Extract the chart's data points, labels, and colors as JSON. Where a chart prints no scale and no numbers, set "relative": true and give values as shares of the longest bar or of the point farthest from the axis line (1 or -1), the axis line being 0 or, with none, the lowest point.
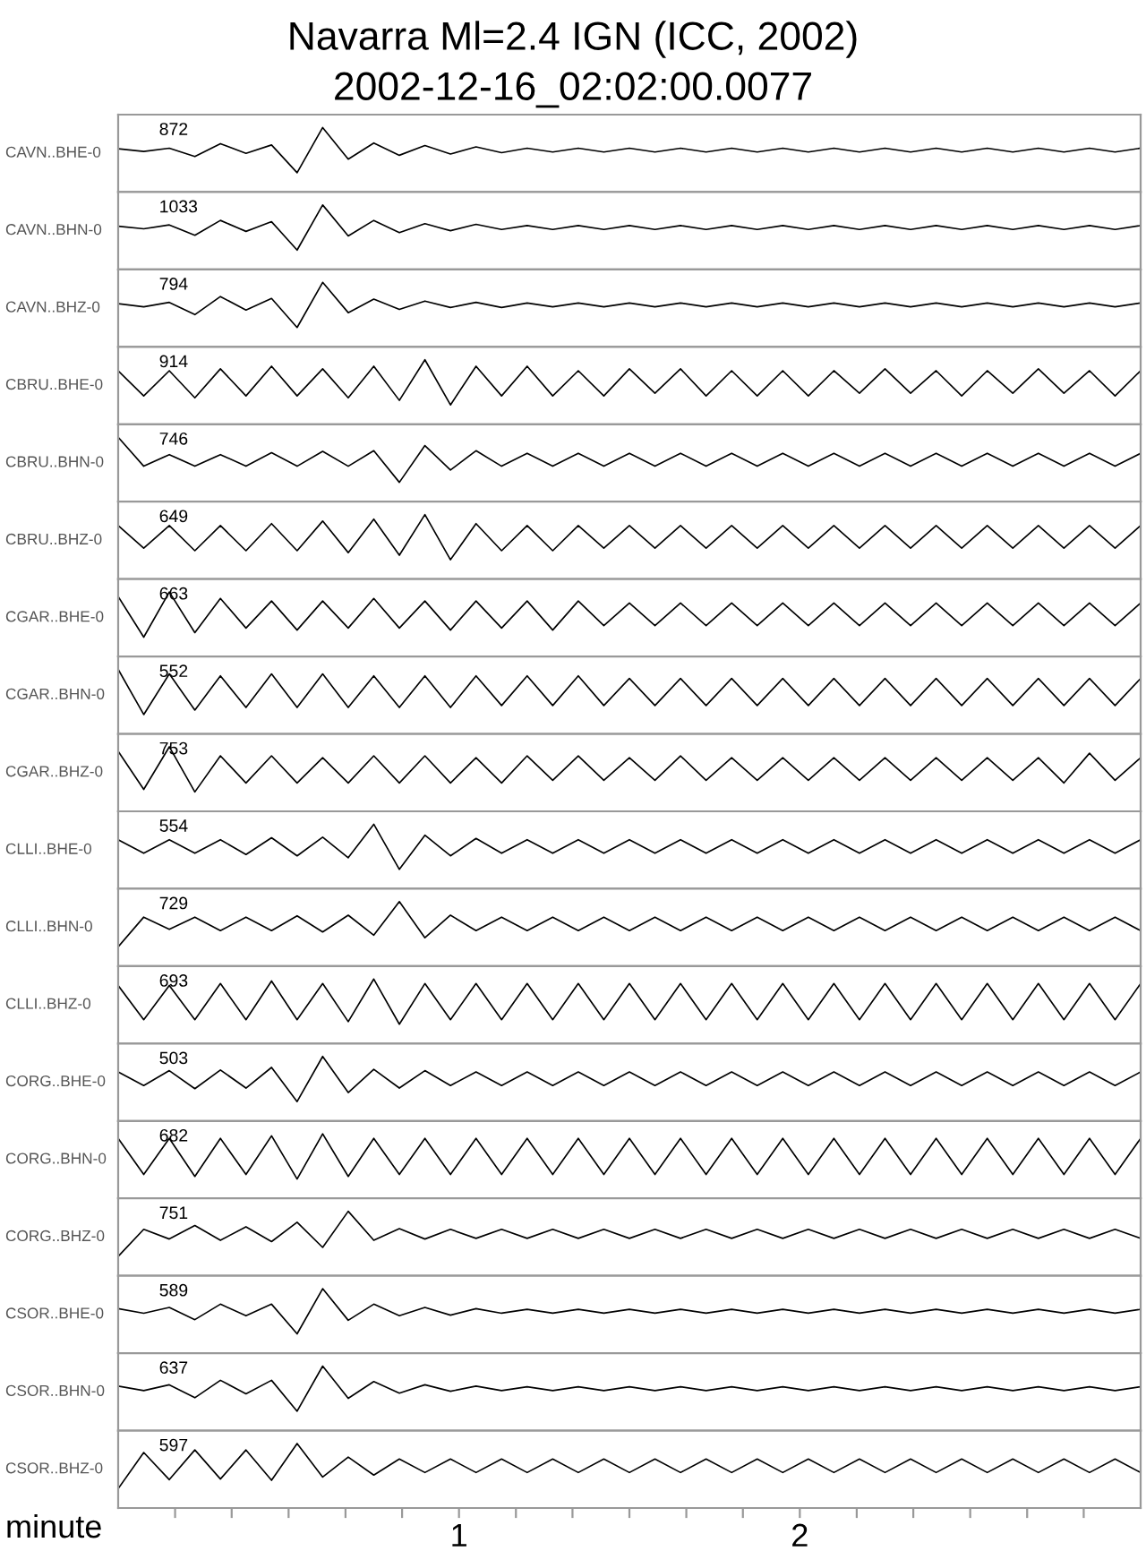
{
  "chart_data": [
    {
      "type": "line",
      "title": "Navarra Ml=2.4 IGN (ICC, 2002)",
      "subtitle": "2002-12-16_02:02:00.0077",
      "ylabel": "CAVN..BHE-0",
      "annotations": [
        "872"
      ],
      "relative": true,
      "xlim": [
        0,
        3
      ],
      "tick_labels": false,
      "x": [
        0,
        0.075,
        0.15,
        0.225,
        0.3,
        0.375,
        0.45,
        0.525,
        0.6,
        0.675,
        0.75,
        0.825,
        0.9,
        0.975,
        1.05,
        1.125,
        1.2,
        1.275,
        1.35,
        1.425,
        1.5,
        1.575,
        1.65,
        1.725,
        1.8,
        1.875,
        1.95,
        2.025,
        2.1,
        2.175,
        2.25,
        2.325,
        2.4,
        2.475,
        2.55,
        2.625,
        2.7,
        2.775,
        2.85,
        2.925,
        3.0
      ],
      "series": [
        {
          "color": "#000000",
          "values": [
            0.67,
            0.63,
            0.68,
            0.55,
            0.75,
            0.6,
            0.73,
            0.3,
            1,
            0.51,
            0.76,
            0.57,
            0.72,
            0.59,
            0.7,
            0.61,
            0.68,
            0.62,
            0.68,
            0.62,
            0.68,
            0.62,
            0.68,
            0.62,
            0.68,
            0.62,
            0.68,
            0.62,
            0.68,
            0.62,
            0.68,
            0.62,
            0.68,
            0.62,
            0.68,
            0.62,
            0.68,
            0.62,
            0.68,
            0.62,
            0.68
          ]
        }
      ]
    },
    {
      "type": "line",
      "ylabel": "CAVN..BHN-0",
      "annotations": [
        "1033"
      ],
      "relative": true,
      "xlim": [
        0,
        3
      ],
      "tick_labels": false,
      "x": [
        0,
        0.075,
        0.15,
        0.225,
        0.3,
        0.375,
        0.45,
        0.525,
        0.6,
        0.675,
        0.75,
        0.825,
        0.9,
        0.975,
        1.05,
        1.125,
        1.2,
        1.275,
        1.35,
        1.425,
        1.5,
        1.575,
        1.65,
        1.725,
        1.8,
        1.875,
        1.95,
        2.025,
        2.1,
        2.175,
        2.25,
        2.325,
        2.4,
        2.475,
        2.55,
        2.625,
        2.7,
        2.775,
        2.85,
        2.925,
        3.0
      ],
      "series": [
        {
          "color": "#000000",
          "values": [
            0.67,
            0.63,
            0.69,
            0.53,
            0.76,
            0.59,
            0.74,
            0.3,
            1,
            0.52,
            0.76,
            0.57,
            0.71,
            0.6,
            0.7,
            0.62,
            0.68,
            0.62,
            0.68,
            0.62,
            0.68,
            0.62,
            0.68,
            0.62,
            0.68,
            0.62,
            0.68,
            0.62,
            0.68,
            0.62,
            0.68,
            0.62,
            0.68,
            0.62,
            0.68,
            0.62,
            0.68,
            0.62,
            0.68,
            0.62,
            0.68
          ]
        }
      ]
    },
    {
      "type": "line",
      "ylabel": "CAVN..BHZ-0",
      "annotations": [
        "794"
      ],
      "relative": true,
      "xlim": [
        0,
        3
      ],
      "tick_labels": false,
      "x": [
        0,
        0.075,
        0.15,
        0.225,
        0.3,
        0.375,
        0.45,
        0.525,
        0.6,
        0.675,
        0.75,
        0.825,
        0.9,
        0.975,
        1.05,
        1.125,
        1.2,
        1.275,
        1.35,
        1.425,
        1.5,
        1.575,
        1.65,
        1.725,
        1.8,
        1.875,
        1.95,
        2.025,
        2.1,
        2.175,
        2.25,
        2.325,
        2.4,
        2.475,
        2.55,
        2.625,
        2.7,
        2.775,
        2.85,
        2.925,
        3.0
      ],
      "series": [
        {
          "color": "#000000",
          "values": [
            0.67,
            0.62,
            0.69,
            0.5,
            0.78,
            0.57,
            0.75,
            0.3,
            1,
            0.53,
            0.74,
            0.58,
            0.71,
            0.61,
            0.69,
            0.61,
            0.68,
            0.62,
            0.68,
            0.62,
            0.68,
            0.62,
            0.68,
            0.62,
            0.68,
            0.62,
            0.68,
            0.62,
            0.68,
            0.62,
            0.68,
            0.62,
            0.68,
            0.62,
            0.68,
            0.62,
            0.68,
            0.62,
            0.68,
            0.62,
            0.68
          ]
        }
      ]
    },
    {
      "type": "line",
      "ylabel": "CBRU..BHE-0",
      "annotations": [
        "914"
      ],
      "relative": true,
      "xlim": [
        0,
        3
      ],
      "tick_labels": false,
      "x": [
        0,
        0.075,
        0.15,
        0.225,
        0.3,
        0.375,
        0.45,
        0.525,
        0.6,
        0.675,
        0.75,
        0.825,
        0.9,
        0.975,
        1.05,
        1.125,
        1.2,
        1.275,
        1.35,
        1.425,
        1.5,
        1.575,
        1.65,
        1.725,
        1.8,
        1.875,
        1.95,
        2.025,
        2.1,
        2.175,
        2.25,
        2.325,
        2.4,
        2.475,
        2.55,
        2.625,
        2.7,
        2.775,
        2.85,
        2.925,
        3.0
      ],
      "series": [
        {
          "color": "#000000",
          "values": [
            0.83,
            0.44,
            0.83,
            0.41,
            0.86,
            0.44,
            0.9,
            0.44,
            0.86,
            0.41,
            0.9,
            0.37,
            1,
            0.3,
            0.9,
            0.44,
            0.9,
            0.44,
            0.83,
            0.44,
            0.86,
            0.48,
            0.86,
            0.44,
            0.83,
            0.44,
            0.83,
            0.44,
            0.83,
            0.48,
            0.86,
            0.48,
            0.83,
            0.44,
            0.83,
            0.48,
            0.86,
            0.48,
            0.83,
            0.44,
            0.83
          ]
        }
      ]
    },
    {
      "type": "line",
      "ylabel": "CBRU..BHN-0",
      "annotations": [
        "746"
      ],
      "relative": true,
      "xlim": [
        0,
        3
      ],
      "tick_labels": false,
      "x": [
        0,
        0.075,
        0.15,
        0.225,
        0.3,
        0.375,
        0.45,
        0.525,
        0.6,
        0.675,
        0.75,
        0.825,
        0.9,
        0.975,
        1.05,
        1.125,
        1.2,
        1.275,
        1.35,
        1.425,
        1.5,
        1.575,
        1.65,
        1.725,
        1.8,
        1.875,
        1.95,
        2.025,
        2.1,
        2.175,
        2.25,
        2.325,
        2.4,
        2.475,
        2.55,
        2.625,
        2.7,
        2.775,
        2.85,
        2.925,
        3.0
      ],
      "series": [
        {
          "color": "#000000",
          "values": [
            1,
            0.55,
            0.73,
            0.55,
            0.73,
            0.55,
            0.76,
            0.55,
            0.78,
            0.55,
            0.79,
            0.3,
            0.87,
            0.49,
            0.79,
            0.55,
            0.75,
            0.55,
            0.75,
            0.55,
            0.75,
            0.55,
            0.75,
            0.55,
            0.75,
            0.55,
            0.75,
            0.55,
            0.75,
            0.55,
            0.75,
            0.55,
            0.75,
            0.55,
            0.75,
            0.55,
            0.75,
            0.55,
            0.75,
            0.55,
            0.75
          ]
        }
      ]
    },
    {
      "type": "line",
      "ylabel": "CBRU..BHZ-0",
      "annotations": [
        "649"
      ],
      "relative": true,
      "xlim": [
        0,
        3
      ],
      "tick_labels": false,
      "x": [
        0,
        0.075,
        0.15,
        0.225,
        0.3,
        0.375,
        0.45,
        0.525,
        0.6,
        0.675,
        0.75,
        0.825,
        0.9,
        0.975,
        1.05,
        1.125,
        1.2,
        1.275,
        1.35,
        1.425,
        1.5,
        1.575,
        1.65,
        1.725,
        1.8,
        1.875,
        1.95,
        2.025,
        2.1,
        2.175,
        2.25,
        2.325,
        2.4,
        2.475,
        2.55,
        2.625,
        2.7,
        2.775,
        2.85,
        2.925,
        3.0
      ],
      "series": [
        {
          "color": "#000000",
          "values": [
            0.83,
            0.48,
            0.83,
            0.44,
            0.83,
            0.44,
            0.86,
            0.44,
            0.9,
            0.41,
            0.93,
            0.37,
            1,
            0.3,
            0.86,
            0.44,
            0.83,
            0.44,
            0.83,
            0.48,
            0.83,
            0.48,
            0.83,
            0.48,
            0.83,
            0.48,
            0.83,
            0.48,
            0.83,
            0.48,
            0.83,
            0.48,
            0.83,
            0.48,
            0.83,
            0.48,
            0.83,
            0.48,
            0.83,
            0.48,
            0.83
          ]
        }
      ]
    },
    {
      "type": "line",
      "ylabel": "CGAR..BHE-0",
      "annotations": [
        "663"
      ],
      "relative": true,
      "xlim": [
        0,
        3
      ],
      "tick_labels": false,
      "x": [
        0,
        0.075,
        0.15,
        0.225,
        0.3,
        0.375,
        0.45,
        0.525,
        0.6,
        0.675,
        0.75,
        0.825,
        0.9,
        0.975,
        1.05,
        1.125,
        1.2,
        1.275,
        1.35,
        1.425,
        1.5,
        1.575,
        1.65,
        1.725,
        1.8,
        1.875,
        1.95,
        2.025,
        2.1,
        2.175,
        2.25,
        2.325,
        2.4,
        2.475,
        2.55,
        2.625,
        2.7,
        2.775,
        2.85,
        2.925,
        3.0
      ],
      "series": [
        {
          "color": "#000000",
          "values": [
            0.93,
            0.3,
            1,
            0.37,
            0.9,
            0.44,
            0.86,
            0.41,
            0.86,
            0.44,
            0.9,
            0.44,
            0.86,
            0.41,
            0.86,
            0.44,
            0.86,
            0.41,
            0.86,
            0.48,
            0.83,
            0.48,
            0.83,
            0.48,
            0.83,
            0.48,
            0.83,
            0.48,
            0.83,
            0.48,
            0.83,
            0.48,
            0.83,
            0.48,
            0.83,
            0.48,
            0.83,
            0.48,
            0.83,
            0.48,
            0.83
          ]
        }
      ]
    },
    {
      "type": "line",
      "ylabel": "CGAR..BHN-0",
      "annotations": [
        "552"
      ],
      "relative": true,
      "xlim": [
        0,
        3
      ],
      "tick_labels": false,
      "x": [
        0,
        0.075,
        0.15,
        0.225,
        0.3,
        0.375,
        0.45,
        0.525,
        0.6,
        0.675,
        0.75,
        0.825,
        0.9,
        0.975,
        1.05,
        1.125,
        1.2,
        1.275,
        1.35,
        1.425,
        1.5,
        1.575,
        1.65,
        1.725,
        1.8,
        1.875,
        1.95,
        2.025,
        2.1,
        2.175,
        2.25,
        2.325,
        2.4,
        2.475,
        2.55,
        2.625,
        2.7,
        2.775,
        2.85,
        2.925,
        3.0
      ],
      "series": [
        {
          "color": "#000000",
          "values": [
            1,
            0.3,
            0.93,
            0.37,
            0.9,
            0.41,
            0.93,
            0.41,
            0.93,
            0.41,
            0.9,
            0.41,
            0.9,
            0.41,
            0.9,
            0.44,
            0.9,
            0.44,
            0.9,
            0.44,
            0.86,
            0.44,
            0.86,
            0.44,
            0.86,
            0.44,
            0.86,
            0.44,
            0.86,
            0.44,
            0.86,
            0.44,
            0.86,
            0.44,
            0.86,
            0.44,
            0.86,
            0.44,
            0.86,
            0.44,
            0.86
          ]
        }
      ]
    },
    {
      "type": "line",
      "ylabel": "CGAR..BHZ-0",
      "annotations": [
        "753"
      ],
      "relative": true,
      "xlim": [
        0,
        3
      ],
      "tick_labels": false,
      "x": [
        0,
        0.075,
        0.15,
        0.225,
        0.3,
        0.375,
        0.45,
        0.525,
        0.6,
        0.675,
        0.75,
        0.825,
        0.9,
        0.975,
        1.05,
        1.125,
        1.2,
        1.275,
        1.35,
        1.425,
        1.5,
        1.575,
        1.65,
        1.725,
        1.8,
        1.875,
        1.95,
        2.025,
        2.1,
        2.175,
        2.25,
        2.325,
        2.4,
        2.475,
        2.55,
        2.625,
        2.7,
        2.775,
        2.85,
        2.925,
        3.0
      ],
      "series": [
        {
          "color": "#000000",
          "values": [
            0.93,
            0.34,
            1,
            0.3,
            0.86,
            0.44,
            0.86,
            0.44,
            0.83,
            0.44,
            0.86,
            0.44,
            0.86,
            0.44,
            0.83,
            0.44,
            0.86,
            0.48,
            0.86,
            0.48,
            0.83,
            0.48,
            0.86,
            0.48,
            0.83,
            0.48,
            0.83,
            0.48,
            0.83,
            0.48,
            0.83,
            0.48,
            0.83,
            0.48,
            0.83,
            0.48,
            0.83,
            0.44,
            0.9,
            0.48,
            0.83
          ]
        }
      ]
    },
    {
      "type": "line",
      "ylabel": "CLLI..BHE-0",
      "annotations": [
        "554"
      ],
      "relative": true,
      "xlim": [
        0,
        3
      ],
      "tick_labels": false,
      "x": [
        0,
        0.075,
        0.15,
        0.225,
        0.3,
        0.375,
        0.45,
        0.525,
        0.6,
        0.675,
        0.75,
        0.825,
        0.9,
        0.975,
        1.05,
        1.125,
        1.2,
        1.275,
        1.35,
        1.425,
        1.5,
        1.575,
        1.65,
        1.725,
        1.8,
        1.875,
        1.95,
        2.025,
        2.1,
        2.175,
        2.25,
        2.325,
        2.4,
        2.475,
        2.55,
        2.625,
        2.7,
        2.775,
        2.85,
        2.925,
        3.0
      ],
      "series": [
        {
          "color": "#000000",
          "values": [
            0.76,
            0.55,
            0.76,
            0.55,
            0.76,
            0.53,
            0.79,
            0.51,
            0.8,
            0.48,
            1,
            0.3,
            0.83,
            0.51,
            0.78,
            0.55,
            0.76,
            0.55,
            0.76,
            0.55,
            0.76,
            0.55,
            0.76,
            0.55,
            0.76,
            0.55,
            0.76,
            0.55,
            0.76,
            0.55,
            0.76,
            0.55,
            0.76,
            0.55,
            0.76,
            0.55,
            0.76,
            0.55,
            0.76,
            0.55,
            0.76
          ]
        }
      ]
    },
    {
      "type": "line",
      "ylabel": "CLLI..BHN-0",
      "annotations": [
        "729"
      ],
      "relative": true,
      "xlim": [
        0,
        3
      ],
      "tick_labels": false,
      "x": [
        0,
        0.075,
        0.15,
        0.225,
        0.3,
        0.375,
        0.45,
        0.525,
        0.6,
        0.675,
        0.75,
        0.825,
        0.9,
        0.975,
        1.05,
        1.125,
        1.2,
        1.275,
        1.35,
        1.425,
        1.5,
        1.575,
        1.65,
        1.725,
        1.8,
        1.875,
        1.95,
        2.025,
        2.1,
        2.175,
        2.25,
        2.325,
        2.4,
        2.475,
        2.55,
        2.625,
        2.7,
        2.775,
        2.85,
        2.925,
        3.0
      ],
      "series": [
        {
          "color": "#000000",
          "values": [
            0.3,
            0.76,
            0.57,
            0.76,
            0.55,
            0.76,
            0.55,
            0.78,
            0.53,
            0.79,
            0.48,
            1,
            0.44,
            0.79,
            0.55,
            0.76,
            0.55,
            0.76,
            0.55,
            0.76,
            0.55,
            0.76,
            0.55,
            0.76,
            0.55,
            0.76,
            0.55,
            0.76,
            0.55,
            0.76,
            0.55,
            0.76,
            0.55,
            0.76,
            0.55,
            0.76,
            0.55,
            0.76,
            0.55,
            0.76,
            0.55
          ]
        }
      ]
    },
    {
      "type": "line",
      "ylabel": "CLLI..BHZ-0",
      "annotations": [
        "693"
      ],
      "relative": true,
      "xlim": [
        0,
        3
      ],
      "tick_labels": false,
      "x": [
        0,
        0.075,
        0.15,
        0.225,
        0.3,
        0.375,
        0.45,
        0.525,
        0.6,
        0.675,
        0.75,
        0.825,
        0.9,
        0.975,
        1.05,
        1.125,
        1.2,
        1.275,
        1.35,
        1.425,
        1.5,
        1.575,
        1.65,
        1.725,
        1.8,
        1.875,
        1.95,
        2.025,
        2.1,
        2.175,
        2.25,
        2.325,
        2.4,
        2.475,
        2.55,
        2.625,
        2.7,
        2.775,
        2.85,
        2.925,
        3.0
      ],
      "series": [
        {
          "color": "#000000",
          "values": [
            0.9,
            0.37,
            0.9,
            0.37,
            0.93,
            0.37,
            0.97,
            0.37,
            0.93,
            0.34,
            1,
            0.3,
            0.93,
            0.37,
            0.93,
            0.37,
            0.93,
            0.37,
            0.93,
            0.37,
            0.93,
            0.37,
            0.93,
            0.37,
            0.93,
            0.37,
            0.93,
            0.37,
            0.93,
            0.37,
            0.93,
            0.37,
            0.93,
            0.37,
            0.93,
            0.37,
            0.93,
            0.37,
            0.93,
            0.37,
            0.93
          ]
        }
      ]
    },
    {
      "type": "line",
      "ylabel": "CORG..BHE-0",
      "annotations": [
        "503"
      ],
      "relative": true,
      "xlim": [
        0,
        3
      ],
      "tick_labels": false,
      "x": [
        0,
        0.075,
        0.15,
        0.225,
        0.3,
        0.375,
        0.45,
        0.525,
        0.6,
        0.675,
        0.75,
        0.825,
        0.9,
        0.975,
        1.05,
        1.125,
        1.2,
        1.275,
        1.35,
        1.425,
        1.5,
        1.575,
        1.65,
        1.725,
        1.8,
        1.875,
        1.95,
        2.025,
        2.1,
        2.175,
        2.25,
        2.325,
        2.4,
        2.475,
        2.55,
        2.625,
        2.7,
        2.775,
        2.85,
        2.925,
        3.0
      ],
      "series": [
        {
          "color": "#000000",
          "values": [
            0.76,
            0.55,
            0.78,
            0.5,
            0.79,
            0.51,
            0.83,
            0.3,
            1,
            0.44,
            0.8,
            0.51,
            0.78,
            0.55,
            0.76,
            0.55,
            0.76,
            0.55,
            0.76,
            0.55,
            0.76,
            0.55,
            0.76,
            0.55,
            0.76,
            0.55,
            0.76,
            0.55,
            0.76,
            0.55,
            0.76,
            0.55,
            0.76,
            0.55,
            0.76,
            0.55,
            0.76,
            0.55,
            0.76,
            0.55,
            0.76
          ]
        }
      ]
    },
    {
      "type": "line",
      "ylabel": "CORG..BHN-0",
      "annotations": [
        "682"
      ],
      "relative": true,
      "xlim": [
        0,
        3
      ],
      "tick_labels": false,
      "x": [
        0,
        0.075,
        0.15,
        0.225,
        0.3,
        0.375,
        0.45,
        0.525,
        0.6,
        0.675,
        0.75,
        0.825,
        0.9,
        0.975,
        1.05,
        1.125,
        1.2,
        1.275,
        1.35,
        1.425,
        1.5,
        1.575,
        1.65,
        1.725,
        1.8,
        1.875,
        1.95,
        2.025,
        2.1,
        2.175,
        2.25,
        2.325,
        2.4,
        2.475,
        2.55,
        2.625,
        2.7,
        2.775,
        2.85,
        2.925,
        3.0
      ],
      "series": [
        {
          "color": "#000000",
          "values": [
            0.93,
            0.37,
            0.93,
            0.34,
            0.93,
            0.37,
            0.97,
            0.3,
            1,
            0.34,
            0.93,
            0.37,
            0.93,
            0.37,
            0.93,
            0.37,
            0.93,
            0.37,
            0.93,
            0.37,
            0.93,
            0.37,
            0.93,
            0.37,
            0.93,
            0.37,
            0.93,
            0.37,
            0.93,
            0.37,
            0.93,
            0.37,
            0.93,
            0.37,
            0.93,
            0.37,
            0.93,
            0.37,
            0.93,
            0.37,
            0.93
          ]
        }
      ]
    },
    {
      "type": "line",
      "ylabel": "CORG..BHZ-0",
      "annotations": [
        "751"
      ],
      "relative": true,
      "xlim": [
        0,
        3
      ],
      "tick_labels": false,
      "x": [
        0,
        0.075,
        0.15,
        0.225,
        0.3,
        0.375,
        0.45,
        0.525,
        0.6,
        0.675,
        0.75,
        0.825,
        0.9,
        0.975,
        1.05,
        1.125,
        1.2,
        1.275,
        1.35,
        1.425,
        1.5,
        1.575,
        1.65,
        1.725,
        1.8,
        1.875,
        1.95,
        2.025,
        2.1,
        2.175,
        2.25,
        2.325,
        2.4,
        2.475,
        2.55,
        2.625,
        2.7,
        2.775,
        2.85,
        2.925,
        3.0
      ],
      "series": [
        {
          "color": "#000000",
          "values": [
            0.3,
            0.72,
            0.57,
            0.78,
            0.55,
            0.76,
            0.53,
            0.83,
            0.44,
            1,
            0.55,
            0.73,
            0.57,
            0.72,
            0.58,
            0.72,
            0.58,
            0.72,
            0.58,
            0.72,
            0.58,
            0.72,
            0.58,
            0.72,
            0.58,
            0.72,
            0.58,
            0.72,
            0.58,
            0.72,
            0.58,
            0.72,
            0.58,
            0.72,
            0.58,
            0.72,
            0.58,
            0.72,
            0.58,
            0.72,
            0.58
          ]
        }
      ]
    },
    {
      "type": "line",
      "ylabel": "CSOR..BHE-0",
      "annotations": [
        "589"
      ],
      "relative": true,
      "xlim": [
        0,
        3
      ],
      "tick_labels": false,
      "x": [
        0,
        0.075,
        0.15,
        0.225,
        0.3,
        0.375,
        0.45,
        0.525,
        0.6,
        0.675,
        0.75,
        0.825,
        0.9,
        0.975,
        1.05,
        1.125,
        1.2,
        1.275,
        1.35,
        1.425,
        1.5,
        1.575,
        1.65,
        1.725,
        1.8,
        1.875,
        1.95,
        2.025,
        2.1,
        2.175,
        2.25,
        2.325,
        2.4,
        2.475,
        2.55,
        2.625,
        2.7,
        2.775,
        2.85,
        2.925,
        3.0
      ],
      "series": [
        {
          "color": "#000000",
          "values": [
            0.69,
            0.62,
            0.71,
            0.52,
            0.76,
            0.58,
            0.76,
            0.3,
            1,
            0.51,
            0.76,
            0.58,
            0.71,
            0.59,
            0.69,
            0.62,
            0.68,
            0.62,
            0.68,
            0.62,
            0.68,
            0.62,
            0.68,
            0.62,
            0.68,
            0.62,
            0.68,
            0.62,
            0.68,
            0.62,
            0.68,
            0.62,
            0.68,
            0.62,
            0.68,
            0.62,
            0.68,
            0.62,
            0.68,
            0.62,
            0.68
          ]
        }
      ]
    },
    {
      "type": "line",
      "ylabel": "CSOR..BHN-0",
      "annotations": [
        "637"
      ],
      "relative": true,
      "xlim": [
        0,
        3
      ],
      "tick_labels": false,
      "x": [
        0,
        0.075,
        0.15,
        0.225,
        0.3,
        0.375,
        0.45,
        0.525,
        0.6,
        0.675,
        0.75,
        0.825,
        0.9,
        0.975,
        1.05,
        1.125,
        1.2,
        1.275,
        1.35,
        1.425,
        1.5,
        1.575,
        1.65,
        1.725,
        1.8,
        1.875,
        1.95,
        2.025,
        2.1,
        2.175,
        2.25,
        2.325,
        2.4,
        2.475,
        2.55,
        2.625,
        2.7,
        2.775,
        2.85,
        2.925,
        3.0
      ],
      "series": [
        {
          "color": "#000000",
          "values": [
            0.69,
            0.62,
            0.71,
            0.51,
            0.78,
            0.57,
            0.78,
            0.3,
            1,
            0.5,
            0.76,
            0.58,
            0.71,
            0.61,
            0.69,
            0.62,
            0.68,
            0.62,
            0.68,
            0.62,
            0.68,
            0.62,
            0.68,
            0.62,
            0.68,
            0.62,
            0.68,
            0.62,
            0.68,
            0.62,
            0.68,
            0.62,
            0.68,
            0.62,
            0.68,
            0.62,
            0.68,
            0.62,
            0.68,
            0.62,
            0.68
          ]
        }
      ]
    },
    {
      "type": "line",
      "ylabel": "CSOR..BHZ-0",
      "annotations": [
        "597"
      ],
      "relative": true,
      "xlim": [
        0,
        3
      ],
      "xlabel": "minute",
      "tick_labels": "x",
      "xticks": [
        {
          "value": 0.167,
          "label": null
        },
        {
          "value": 0.333,
          "label": null
        },
        {
          "value": 0.5,
          "label": null
        },
        {
          "value": 0.667,
          "label": null
        },
        {
          "value": 0.833,
          "label": null
        },
        {
          "value": 1,
          "label": "1"
        },
        {
          "value": 1.167,
          "label": null
        },
        {
          "value": 1.333,
          "label": null
        },
        {
          "value": 1.5,
          "label": null
        },
        {
          "value": 1.667,
          "label": null
        },
        {
          "value": 1.833,
          "label": null
        },
        {
          "value": 2,
          "label": "2"
        },
        {
          "value": 2.167,
          "label": null
        },
        {
          "value": 2.333,
          "label": null
        },
        {
          "value": 2.5,
          "label": null
        },
        {
          "value": 2.667,
          "label": null
        },
        {
          "value": 2.833,
          "label": null
        }
      ],
      "x": [
        0,
        0.075,
        0.15,
        0.225,
        0.3,
        0.375,
        0.45,
        0.525,
        0.6,
        0.675,
        0.75,
        0.825,
        0.9,
        0.975,
        1.05,
        1.125,
        1.2,
        1.275,
        1.35,
        1.425,
        1.5,
        1.575,
        1.65,
        1.725,
        1.8,
        1.875,
        1.95,
        2.025,
        2.1,
        2.175,
        2.25,
        2.325,
        2.4,
        2.475,
        2.55,
        2.625,
        2.7,
        2.775,
        2.85,
        2.925,
        3.0
      ],
      "series": [
        {
          "color": "#000000",
          "values": [
            0.3,
            0.86,
            0.44,
            0.9,
            0.45,
            0.9,
            0.43,
            1,
            0.48,
            0.79,
            0.51,
            0.76,
            0.55,
            0.76,
            0.55,
            0.76,
            0.55,
            0.76,
            0.55,
            0.76,
            0.55,
            0.76,
            0.55,
            0.76,
            0.55,
            0.76,
            0.55,
            0.76,
            0.55,
            0.76,
            0.55,
            0.76,
            0.55,
            0.76,
            0.55,
            0.76,
            0.55,
            0.76,
            0.55,
            0.76,
            0.55
          ]
        }
      ]
    }
  ]
}
